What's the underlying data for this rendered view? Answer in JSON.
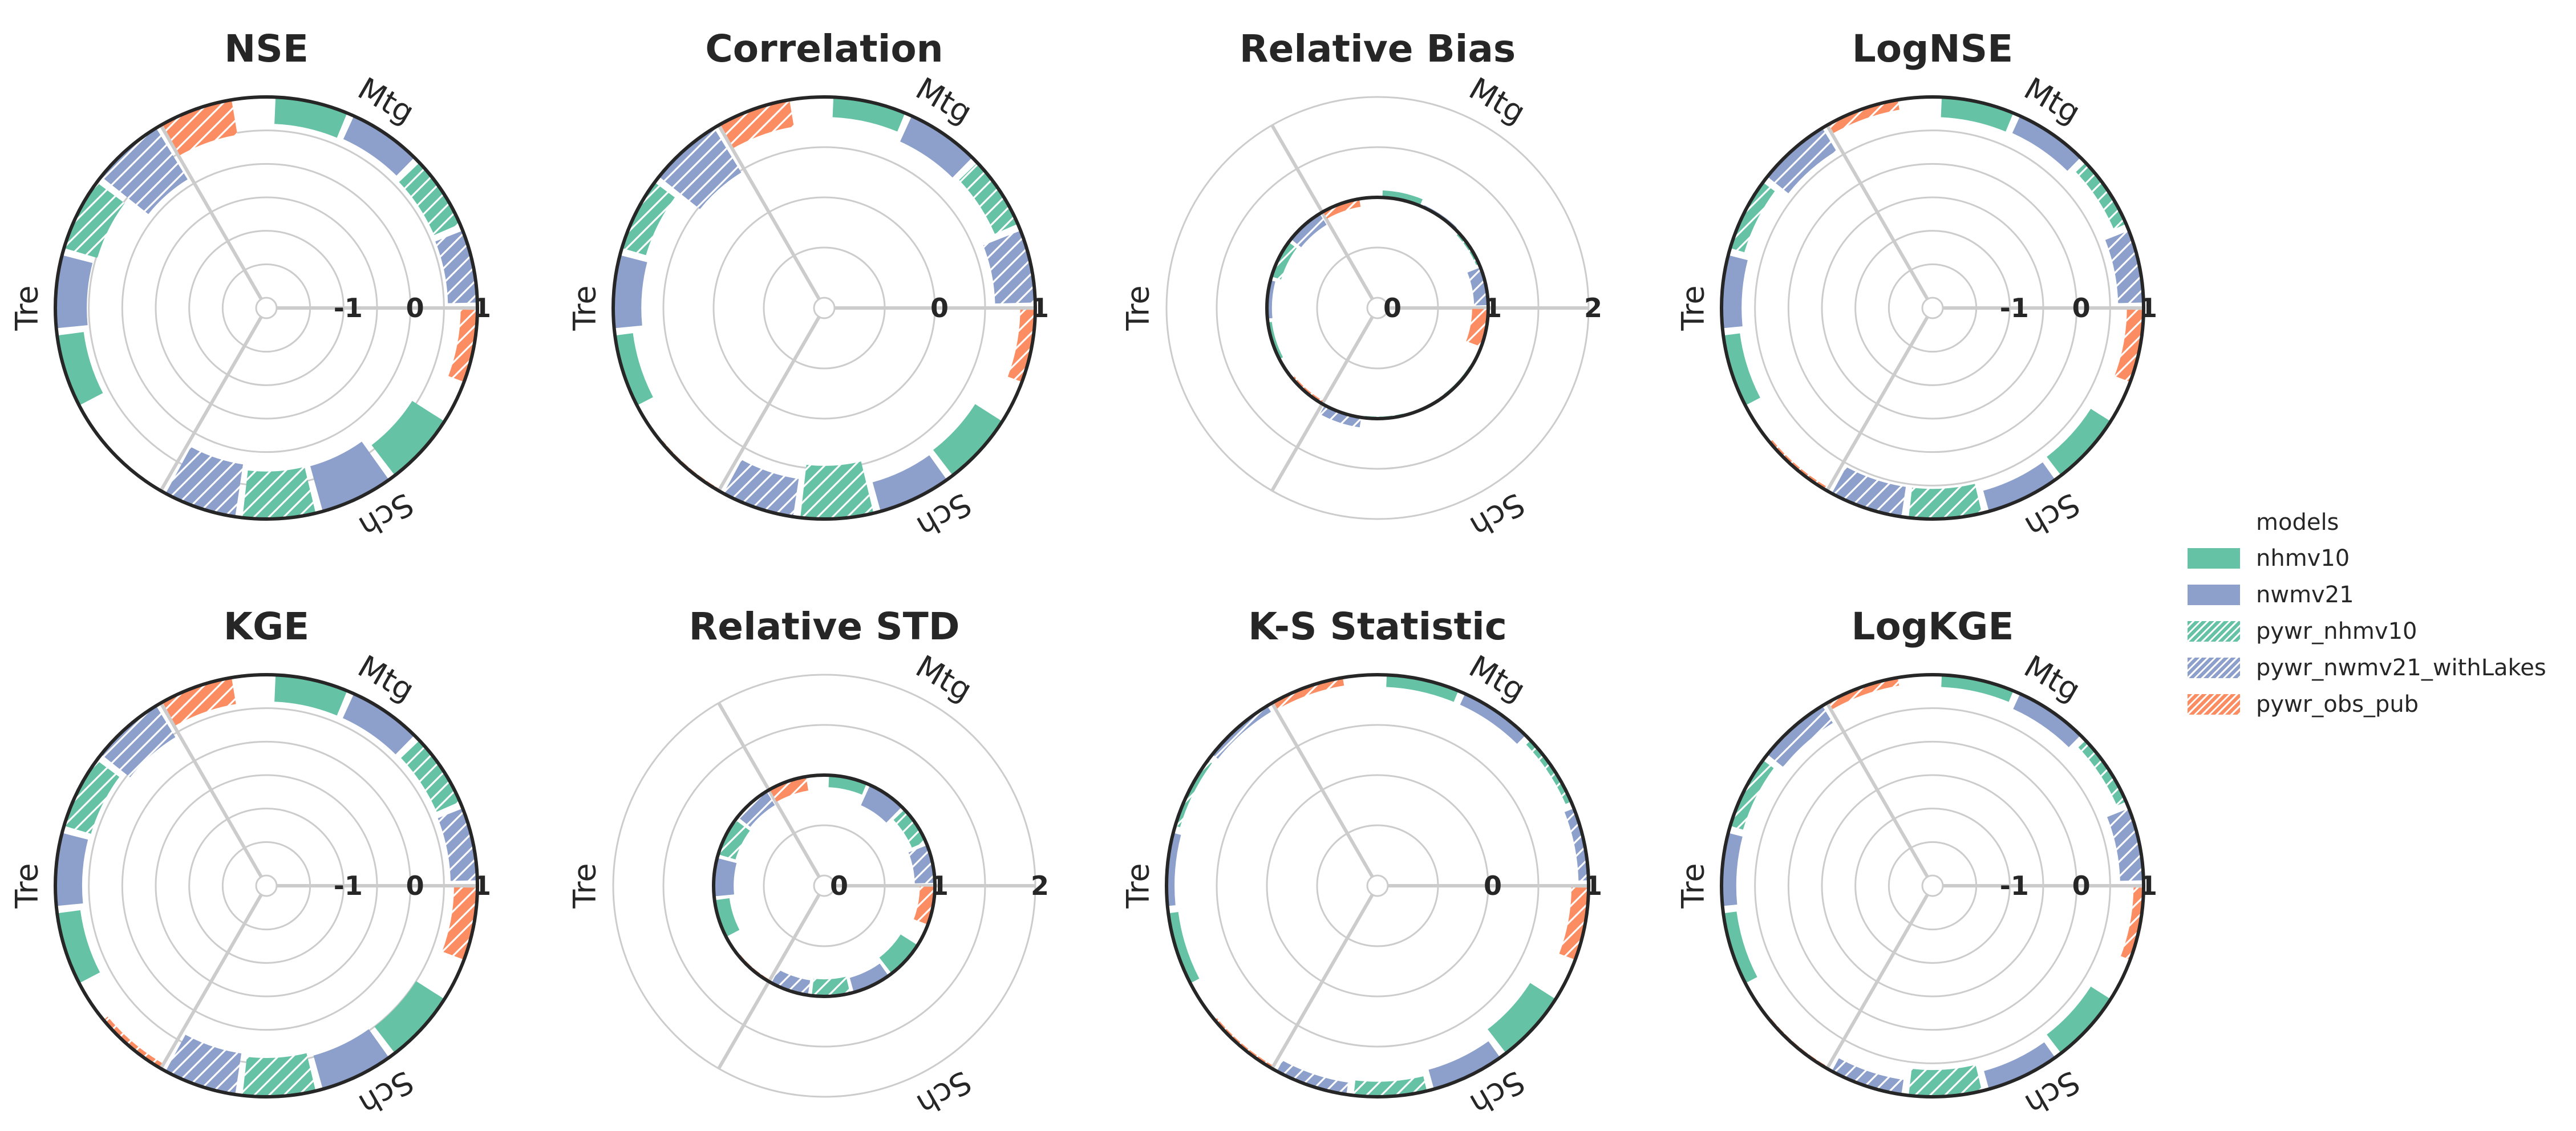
{
  "colors": {
    "nhmv10": "#66c2a5",
    "nwmv21": "#8da0cb",
    "pywr_nhmv10": "#66c2a5",
    "pywr_nwmv21_withLakes": "#8da0cb",
    "pywr_obs_pub": "#fc8d62",
    "axis": "#262626",
    "grid": "#cccccc"
  },
  "legend": {
    "title": "models",
    "items": [
      {
        "label": "nhmv10",
        "key": "nhmv10",
        "hatched": false
      },
      {
        "label": "nwmv21",
        "key": "nwmv21",
        "hatched": false
      },
      {
        "label": "pywr_nhmv10",
        "key": "pywr_nhmv10",
        "hatched": true
      },
      {
        "label": "pywr_nwmv21_withLakes",
        "key": "pywr_nwmv21_withLakes",
        "hatched": true
      },
      {
        "label": "pywr_obs_pub",
        "key": "pywr_obs_pub",
        "hatched": true
      }
    ]
  },
  "chart_data": [
    {
      "type": "polar-bar",
      "title": "NSE",
      "rlim": [
        -2,
        1
      ],
      "rticks": [
        {
          "v": -1,
          "label": "-1"
        },
        {
          "v": 0,
          "label": "0"
        },
        {
          "v": 1,
          "label": "1"
        }
      ],
      "gridlines": [
        -1.5,
        -1,
        -0.5,
        0,
        0.5
      ],
      "sectors": [
        "Mtg",
        "Sch",
        "Tre"
      ],
      "models": [
        "nhmv10",
        "nwmv21",
        "pywr_nhmv10",
        "pywr_nwmv21_withLakes",
        "pywr_obs_pub"
      ],
      "values": {
        "Mtg": [
          0.6,
          0.62,
          0.58,
          0.56,
          0.75
        ],
        "Sch": [
          0.43,
          0.3,
          0.29,
          0.21,
          0.98
        ],
        "Tre": [
          0.6,
          0.53,
          0.48,
          0.1,
          0.47
        ]
      }
    },
    {
      "type": "polar-bar",
      "title": "Correlation",
      "rlim": [
        -1,
        1
      ],
      "rticks": [
        {
          "v": 0,
          "label": "0"
        },
        {
          "v": 1,
          "label": "1"
        }
      ],
      "gridlines": [
        -0.5,
        0,
        0.5
      ],
      "sectors": [
        "Mtg",
        "Sch",
        "Tre"
      ],
      "models": [
        "nhmv10",
        "nwmv21",
        "pywr_nhmv10",
        "pywr_nwmv21_withLakes",
        "pywr_obs_pub"
      ],
      "values": {
        "Mtg": [
          0.8,
          0.72,
          0.75,
          0.6,
          0.85
        ],
        "Sch": [
          0.68,
          0.7,
          0.47,
          0.62,
          0.98
        ],
        "Tre": [
          0.82,
          0.72,
          0.75,
          0.48,
          0.73
        ]
      }
    },
    {
      "type": "polar-bar",
      "title": "Relative Bias",
      "rlim": [
        0,
        2
      ],
      "rticks": [
        {
          "v": 0,
          "label": "0"
        },
        {
          "v": 1,
          "label": "1"
        },
        {
          "v": 2,
          "label": "2"
        }
      ],
      "gridlines": [
        0.5,
        1,
        1.5,
        2
      ],
      "ref_circle": 1,
      "sectors": [
        "Mtg",
        "Sch",
        "Tre"
      ],
      "models": [
        "nhmv10",
        "nwmv21",
        "pywr_nhmv10",
        "pywr_nwmv21_withLakes",
        "pywr_obs_pub"
      ],
      "values": {
        "Mtg": [
          1.07,
          1.0,
          0.97,
          0.86,
          0.84
        ],
        "Sch": [
          0.98,
          0.99,
          0.98,
          1.1,
          0.97
        ],
        "Tre": [
          0.96,
          0.95,
          0.9,
          0.87,
          0.92
        ]
      }
    },
    {
      "type": "polar-bar",
      "title": "LogNSE",
      "rlim": [
        -2,
        1
      ],
      "rticks": [
        {
          "v": -1,
          "label": "-1"
        },
        {
          "v": 0,
          "label": "0"
        },
        {
          "v": 1,
          "label": "1"
        }
      ],
      "gridlines": [
        -1.5,
        -1,
        -0.5,
        0,
        0.5
      ],
      "sectors": [
        "Mtg",
        "Sch",
        "Tre"
      ],
      "models": [
        "nhmv10",
        "nwmv21",
        "pywr_nhmv10",
        "pywr_nwmv21_withLakes",
        "pywr_obs_pub"
      ],
      "values": {
        "Mtg": [
          0.7,
          0.72,
          0.8,
          0.62,
          0.75
        ],
        "Sch": [
          0.65,
          0.68,
          0.55,
          0.55,
          0.95
        ],
        "Tre": [
          0.75,
          0.7,
          0.78,
          0.6,
          0.85
        ]
      }
    },
    {
      "type": "polar-bar",
      "title": "KGE",
      "rlim": [
        -2,
        1
      ],
      "rticks": [
        {
          "v": -1,
          "label": "-1"
        },
        {
          "v": 0,
          "label": "0"
        },
        {
          "v": 1,
          "label": "1"
        }
      ],
      "gridlines": [
        -1.5,
        -1,
        -0.5,
        0,
        0.5
      ],
      "sectors": [
        "Mtg",
        "Sch",
        "Tre"
      ],
      "models": [
        "nhmv10",
        "nwmv21",
        "pywr_nhmv10",
        "pywr_nwmv21_withLakes",
        "pywr_obs_pub"
      ],
      "values": {
        "Mtg": [
          0.6,
          0.6,
          0.62,
          0.6,
          0.65
        ],
        "Sch": [
          0.5,
          0.48,
          0.42,
          0.38,
          0.92
        ],
        "Tre": [
          0.65,
          0.6,
          0.58,
          0.45,
          0.6
        ]
      }
    },
    {
      "type": "polar-bar",
      "title": "Relative STD",
      "rlim": [
        0,
        2
      ],
      "rticks": [
        {
          "v": 0,
          "label": "0"
        },
        {
          "v": 1,
          "label": "1"
        },
        {
          "v": 2,
          "label": "2"
        }
      ],
      "gridlines": [
        0.5,
        1,
        1.5,
        2
      ],
      "ref_circle": 1,
      "sectors": [
        "Mtg",
        "Sch",
        "Tre"
      ],
      "models": [
        "nhmv10",
        "nwmv21",
        "pywr_nhmv10",
        "pywr_nwmv21_withLakes",
        "pywr_obs_pub"
      ],
      "values": {
        "Mtg": [
          0.88,
          0.78,
          0.85,
          0.8,
          0.85
        ],
        "Sch": [
          0.8,
          0.85,
          0.83,
          0.85,
          0.98
        ],
        "Tre": [
          0.85,
          0.8,
          0.82,
          0.84,
          0.86
        ]
      }
    },
    {
      "type": "polar-bar",
      "title": "K-S Statistic",
      "rlim": [
        -1,
        1
      ],
      "rticks": [
        {
          "v": 0,
          "label": "0"
        },
        {
          "v": 1,
          "label": "1"
        }
      ],
      "gridlines": [
        -0.5,
        0,
        0.5
      ],
      "sectors": [
        "Mtg",
        "Sch",
        "Tre"
      ],
      "models": [
        "nhmv10",
        "nwmv21",
        "pywr_nhmv10",
        "pywr_nwmv21_withLakes",
        "pywr_obs_pub"
      ],
      "values": {
        "Mtg": [
          0.88,
          0.88,
          0.94,
          0.9,
          0.83
        ],
        "Sch": [
          0.7,
          0.8,
          0.85,
          0.88,
          0.97
        ],
        "Tre": [
          0.9,
          0.92,
          0.95,
          0.93,
          0.92
        ]
      }
    },
    {
      "type": "polar-bar",
      "title": "LogKGE",
      "rlim": [
        -2,
        1
      ],
      "rticks": [
        {
          "v": -1,
          "label": "-1"
        },
        {
          "v": 0,
          "label": "0"
        },
        {
          "v": 1,
          "label": "1"
        }
      ],
      "gridlines": [
        -1.5,
        -1,
        -0.5,
        0,
        0.5
      ],
      "sectors": [
        "Mtg",
        "Sch",
        "Tre"
      ],
      "models": [
        "nhmv10",
        "nwmv21",
        "pywr_nhmv10",
        "pywr_nwmv21_withLakes",
        "pywr_obs_pub"
      ],
      "values": {
        "Mtg": [
          0.82,
          0.75,
          0.85,
          0.65,
          0.85
        ],
        "Sch": [
          0.65,
          0.72,
          0.6,
          0.78,
          0.97
        ],
        "Tre": [
          0.8,
          0.78,
          0.8,
          0.7,
          0.88
        ]
      }
    }
  ]
}
